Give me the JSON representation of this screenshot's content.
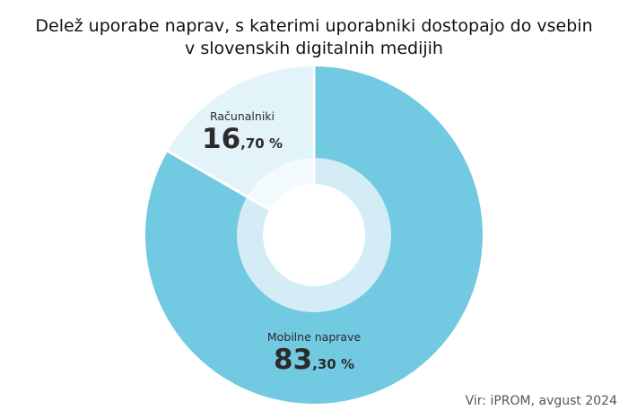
{
  "title": {
    "line1": "Delež uporabe naprav, s katerimi uporabniki dostopajo do vsebin",
    "line2": "v slovenskih digitalnih medijih"
  },
  "source": "Vir: iPROM, avgust 2024",
  "colors": {
    "mobile": "#72c9e2",
    "mobile_inner": "#d3ecf5",
    "desktop": "#e2f3f9",
    "desktop_inner": "#f2fafd",
    "separator": "#ffffff"
  },
  "chart_data": {
    "type": "pie",
    "variant": "donut",
    "title": "Delež uporabe naprav, s katerimi uporabniki dostopajo do vsebin v slovenskih digitalnih medijih",
    "unit": "%",
    "slices": [
      {
        "label": "Mobilne naprave",
        "value": 83.3,
        "int_text": "83",
        "dec_text": ",30 %"
      },
      {
        "label": "Računalniki",
        "value": 16.7,
        "int_text": "16",
        "dec_text": ",70 %"
      }
    ]
  }
}
